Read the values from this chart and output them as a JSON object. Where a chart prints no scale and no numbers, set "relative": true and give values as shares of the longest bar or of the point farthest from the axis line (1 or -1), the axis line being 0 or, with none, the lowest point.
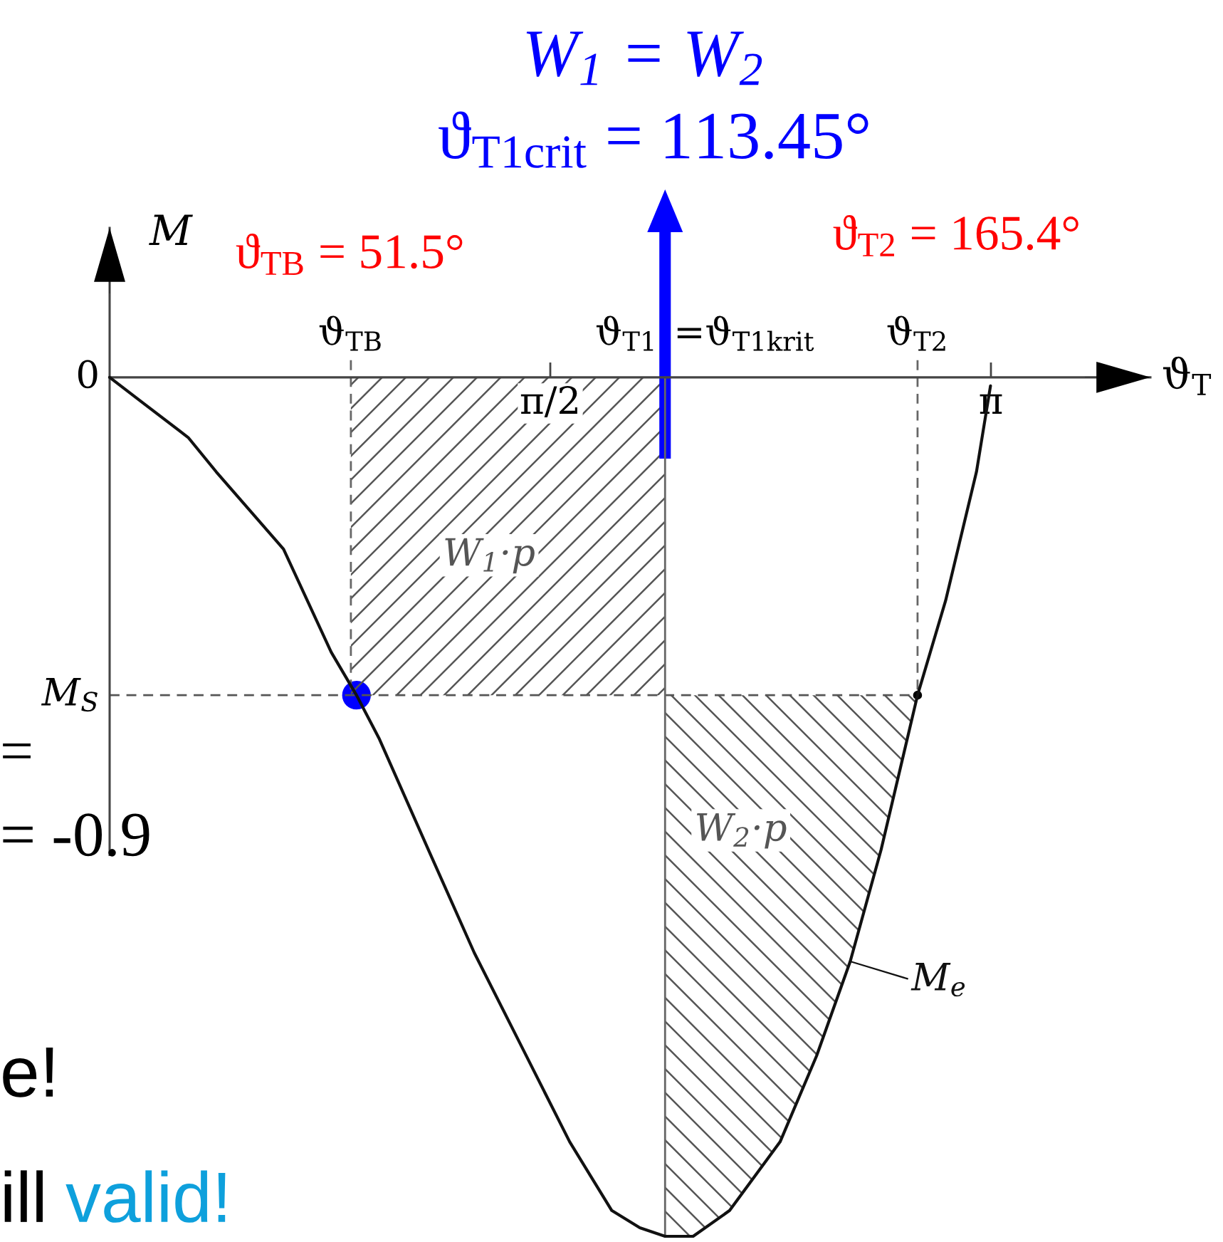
{
  "chart_data": {
    "type": "line",
    "relative": true,
    "xlabel": "ϑ$_{T}$",
    "ylabel": "M",
    "xlim": [
      0,
      3.71
    ],
    "xticks": [
      {
        "value": 1.5708,
        "label": "π/2"
      },
      {
        "value": 3.1416,
        "label": "π"
      }
    ],
    "series": [
      {
        "type": "area",
        "name": "W$_{1}$·p",
        "color": "#555555",
        "x": [
          0.86,
          1.98
        ],
        "values": [
          -0.37,
          -0.37
        ]
      },
      {
        "name": "W$_{2}$·p",
        "color": "#555555",
        "line_style": "dashed",
        "x": [
          0,
          1.98,
          2.08,
          2.21,
          2.39,
          2.52,
          2.64,
          2.75,
          2.88
        ],
        "values": [
          -0.37,
          -0.37,
          -0.37,
          -0.37,
          -0.37,
          -0.37,
          -0.37,
          -0.37,
          -0.37
        ],
        "lower": [
          null,
          -1,
          -1,
          -0.97,
          -0.89,
          -0.79,
          -0.68,
          -0.55,
          -0.37
        ],
        "upper": [
          null,
          -0.37,
          -0.37,
          -0.37,
          -0.37,
          -0.37,
          -0.37,
          -0.37,
          -0.37
        ]
      },
      {
        "color": "#666666",
        "line_style": "dashed",
        "x": [
          0.86,
          0.86
        ],
        "values": [
          0.02,
          -0.37
        ]
      },
      {
        "color": "#666666",
        "line_style": "dashed",
        "x": [
          2.88,
          2.88
        ],
        "values": [
          0.02,
          -0.37
        ]
      },
      {
        "color": "#666666",
        "line_style": "solid",
        "x": [
          1.98,
          1.98
        ],
        "values": [
          0,
          -1
        ]
      },
      {
        "name": "M$_{e}$",
        "color": "#111111",
        "line_style": "solid",
        "x": [
          0,
          0.12,
          0.28,
          0.38,
          0.62,
          0.79,
          0.88,
          0.96,
          1.15,
          1.3,
          1.47,
          1.64,
          1.79,
          1.89,
          1.98,
          2.08,
          2.21,
          2.39,
          2.52,
          2.64,
          2.75,
          2.88,
          2.98,
          3.09,
          3.14
        ],
        "values": [
          0,
          -0.03,
          -0.07,
          -0.11,
          -0.2,
          -0.32,
          -0.37,
          -0.42,
          -0.56,
          -0.67,
          -0.78,
          -0.89,
          -0.97,
          -0.99,
          -1,
          -1,
          -0.97,
          -0.89,
          -0.79,
          -0.68,
          -0.55,
          -0.37,
          -0.26,
          -0.11,
          -0.01
        ]
      },
      {
        "type": "scatter",
        "color": "#0000ff",
        "marker": "circle",
        "x": [
          0.88
        ],
        "values": [
          -0.37
        ]
      },
      {
        "type": "scatter",
        "color": "#000000",
        "marker": "circle",
        "x": [
          2.88
        ],
        "values": [
          -0.37
        ]
      }
    ],
    "annotations": [
      "W$_{1}$ = W$_{2}$",
      "ϑ$_{T1crit}$ = 113.45°",
      "ϑ$_{TB}$ = 51.5°",
      "ϑ$_{T2}$ = 165.4°",
      {
        "text": "ϑ$_{TB}$",
        "x": 0.86,
        "y": 0
      },
      {
        "text": "ϑ$_{T1}$",
        "x": 1.98,
        "y": 0
      },
      "=ϑ$_{T1krit}$",
      {
        "text": "ϑ$_{T2}$",
        "x": 2.88,
        "y": 0
      },
      "0",
      "M$_{S}$",
      "=",
      "= -0.9",
      "e!",
      "ill",
      "valid!"
    ]
  }
}
